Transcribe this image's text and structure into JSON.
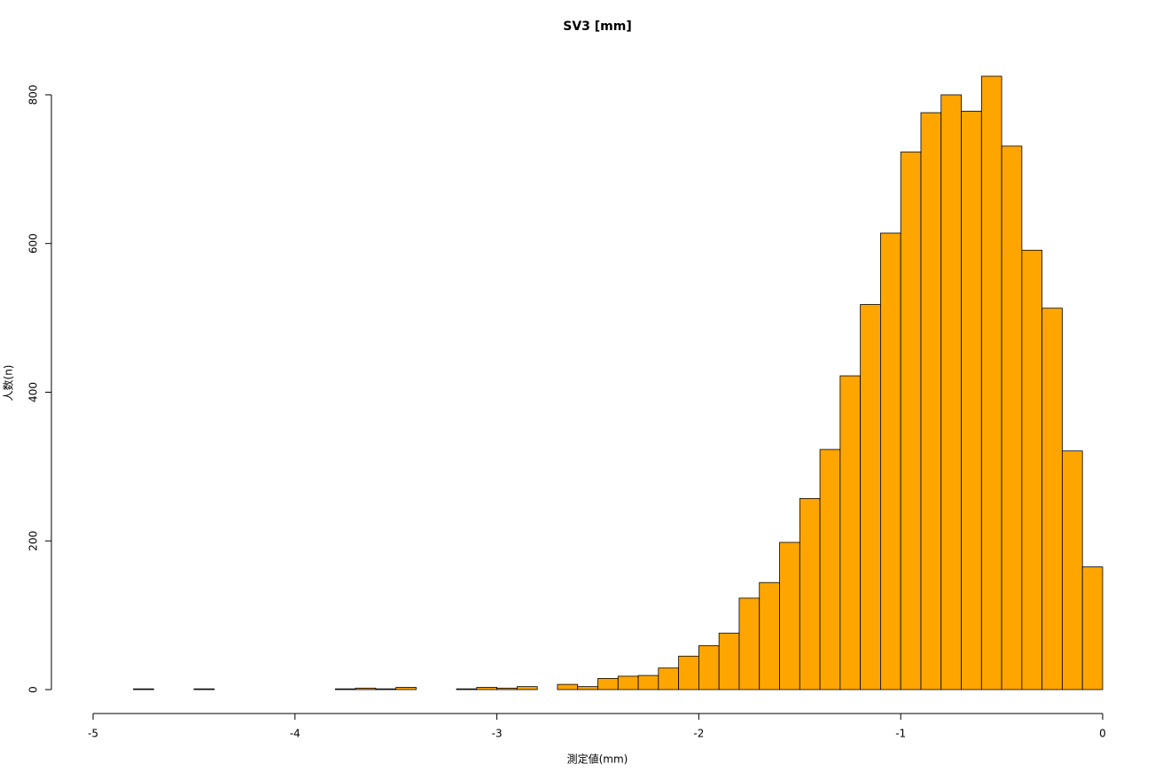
{
  "chart_data": {
    "type": "histogram",
    "title": "SV3 [mm]",
    "x_label": "測定値(mm)",
    "y_label": "人数(n)",
    "bins": [
      -4.8,
      -4.7,
      -4.6,
      -4.5,
      -4.4,
      -4.3,
      -4.2,
      -4.1,
      -4.0,
      -3.9,
      -3.8,
      -3.7,
      -3.6,
      -3.5,
      -3.4,
      -3.3,
      -3.2,
      -3.1,
      -3.0,
      -2.9,
      -2.8,
      -2.7,
      -2.6,
      -2.5,
      -2.4,
      -2.3,
      -2.2,
      -2.1,
      -2.0,
      -1.9,
      -1.8,
      -1.7,
      -1.6,
      -1.5,
      -1.4,
      -1.3,
      -1.2,
      -1.1,
      -1.0,
      -0.9,
      -0.8,
      -0.7,
      -0.6,
      -0.5,
      -0.4,
      -0.3,
      -0.2,
      -0.1,
      0
    ],
    "counts": [
      1,
      0,
      0,
      1,
      0,
      0,
      0,
      0,
      0,
      0,
      1,
      2,
      1,
      3,
      0,
      0,
      1,
      3,
      2,
      4,
      0,
      7,
      4,
      15,
      18,
      19,
      29,
      45,
      59,
      76,
      123,
      144,
      198,
      257,
      323,
      422,
      518,
      614,
      723,
      776,
      800,
      778,
      825,
      731,
      591,
      513,
      321,
      165
    ],
    "color": "#ffa500",
    "xlim": [
      -5,
      0
    ],
    "xticks": [
      -5,
      -4,
      -3,
      -2,
      -1,
      0
    ],
    "ylim": [
      0,
      825
    ],
    "yticks": [
      0,
      200,
      400,
      600,
      800
    ]
  }
}
